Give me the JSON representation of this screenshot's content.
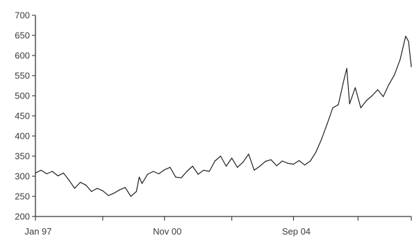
{
  "chart_data": {
    "type": "line",
    "title": "",
    "xlabel": "",
    "ylabel": "",
    "grid": false,
    "legend": "none",
    "line_color": "#1e1e1e",
    "axis_color": "#333333",
    "text_color": "#3a3a3a",
    "xlim": [
      "1997-01",
      "2008-03"
    ],
    "ylim": [
      200,
      700
    ],
    "y_ticks": [
      200,
      250,
      300,
      350,
      400,
      450,
      500,
      550,
      600,
      650,
      700
    ],
    "x_ticks": [
      "1997-01",
      "1999-01",
      "2000-11",
      "2002-11",
      "2004-09",
      "2006-08",
      "2008-03"
    ],
    "x_tick_labels": [
      {
        "label": "Jan 97",
        "at": "1997-01"
      },
      {
        "label": "Nov 00",
        "at": "2000-11"
      },
      {
        "label": "Sep 04",
        "at": "2004-09"
      }
    ],
    "series": [
      {
        "points": [
          [
            "1997-01",
            308
          ],
          [
            "1997-03",
            315
          ],
          [
            "1997-05",
            306
          ],
          [
            "1997-07",
            312
          ],
          [
            "1997-09",
            301
          ],
          [
            "1997-11",
            308
          ],
          [
            "1998-01",
            290
          ],
          [
            "1998-03",
            270
          ],
          [
            "1998-05",
            285
          ],
          [
            "1998-07",
            278
          ],
          [
            "1998-09",
            262
          ],
          [
            "1998-11",
            270
          ],
          [
            "1999-01",
            264
          ],
          [
            "1999-03",
            252
          ],
          [
            "1999-05",
            258
          ],
          [
            "1999-07",
            266
          ],
          [
            "1999-09",
            272
          ],
          [
            "1999-11",
            250
          ],
          [
            "2000-01",
            262
          ],
          [
            "2000-02",
            298
          ],
          [
            "2000-03",
            282
          ],
          [
            "2000-05",
            305
          ],
          [
            "2000-07",
            312
          ],
          [
            "2000-09",
            306
          ],
          [
            "2000-11",
            316
          ],
          [
            "2001-01",
            322
          ],
          [
            "2001-03",
            298
          ],
          [
            "2001-05",
            296
          ],
          [
            "2001-07",
            312
          ],
          [
            "2001-09",
            325
          ],
          [
            "2001-11",
            305
          ],
          [
            "2002-01",
            315
          ],
          [
            "2002-03",
            312
          ],
          [
            "2002-05",
            338
          ],
          [
            "2002-07",
            350
          ],
          [
            "2002-09",
            325
          ],
          [
            "2002-11",
            345
          ],
          [
            "2003-01",
            322
          ],
          [
            "2003-03",
            335
          ],
          [
            "2003-05",
            355
          ],
          [
            "2003-07",
            315
          ],
          [
            "2003-09",
            325
          ],
          [
            "2003-11",
            337
          ],
          [
            "2004-01",
            341
          ],
          [
            "2004-03",
            326
          ],
          [
            "2004-05",
            338
          ],
          [
            "2004-07",
            332
          ],
          [
            "2004-09",
            330
          ],
          [
            "2004-11",
            339
          ],
          [
            "2005-01",
            328
          ],
          [
            "2005-03",
            338
          ],
          [
            "2005-05",
            360
          ],
          [
            "2005-07",
            392
          ],
          [
            "2005-09",
            430
          ],
          [
            "2005-11",
            470
          ],
          [
            "2006-01",
            478
          ],
          [
            "2006-03",
            540
          ],
          [
            "2006-04",
            568
          ],
          [
            "2006-05",
            480
          ],
          [
            "2006-07",
            520
          ],
          [
            "2006-09",
            470
          ],
          [
            "2006-11",
            488
          ],
          [
            "2007-01",
            500
          ],
          [
            "2007-03",
            515
          ],
          [
            "2007-05",
            498
          ],
          [
            "2007-07",
            528
          ],
          [
            "2007-09",
            552
          ],
          [
            "2007-11",
            590
          ],
          [
            "2008-01",
            648
          ],
          [
            "2008-02",
            635
          ],
          [
            "2008-03",
            572
          ]
        ]
      }
    ]
  }
}
